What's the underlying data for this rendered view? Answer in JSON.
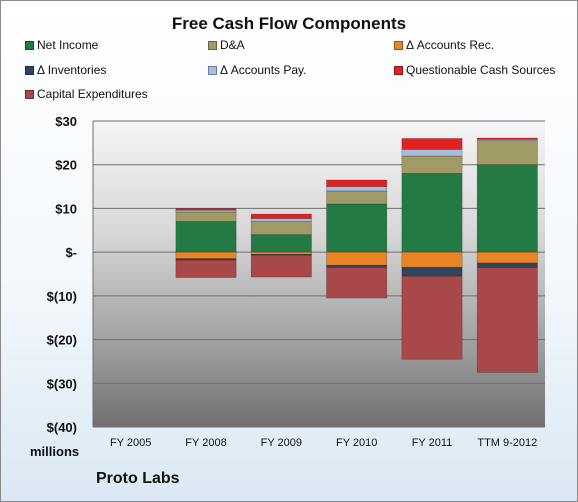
{
  "chart_data": {
    "type": "bar",
    "stacked": true,
    "title": "Free Cash Flow Components",
    "ylabel": "millions",
    "footer": "Proto Labs",
    "ylim": [
      -40,
      30
    ],
    "yticks": [
      30,
      20,
      10,
      0,
      -10,
      -20,
      -30,
      -40
    ],
    "ytick_labels": [
      "$30",
      "$20",
      "$10",
      "$-",
      "$(10)",
      "$(20)",
      "$(30)",
      "$(40)"
    ],
    "categories": [
      "FY 2005",
      "FY 2008",
      "FY 2009",
      "FY 2010",
      "FY 2011",
      "TTM 9-2012"
    ],
    "grid": true,
    "legend_position": "top",
    "series": [
      {
        "name": "Net Income",
        "color": "#237a45",
        "values": [
          0,
          7.0,
          4.0,
          11.0,
          18.0,
          20.0
        ]
      },
      {
        "name": "D&A",
        "color": "#a09a66",
        "values": [
          0,
          2.2,
          3.0,
          3.0,
          4.0,
          5.5
        ]
      },
      {
        "name": "Δ Accounts Rec.",
        "color": "#e88526",
        "values": [
          0,
          -1.5,
          -0.5,
          -3.0,
          -3.5,
          -2.5
        ]
      },
      {
        "name": "Δ Inventories",
        "color": "#2e4560",
        "values": [
          0,
          -0.3,
          -0.2,
          -0.5,
          -2.0,
          -1.0
        ]
      },
      {
        "name": "Δ Accounts Pay.",
        "color": "#a6bde2",
        "values": [
          0,
          0.4,
          0.7,
          1.0,
          1.5,
          0.3
        ]
      },
      {
        "name": "Questionable Cash Sources",
        "color": "#e12121",
        "values": [
          0,
          0.4,
          1.0,
          1.5,
          2.5,
          0.3
        ]
      },
      {
        "name": "Capital Expenditures",
        "color": "#a8484a",
        "values": [
          0,
          -4.0,
          -5.0,
          -7.0,
          -19.0,
          -24.0
        ]
      }
    ]
  }
}
